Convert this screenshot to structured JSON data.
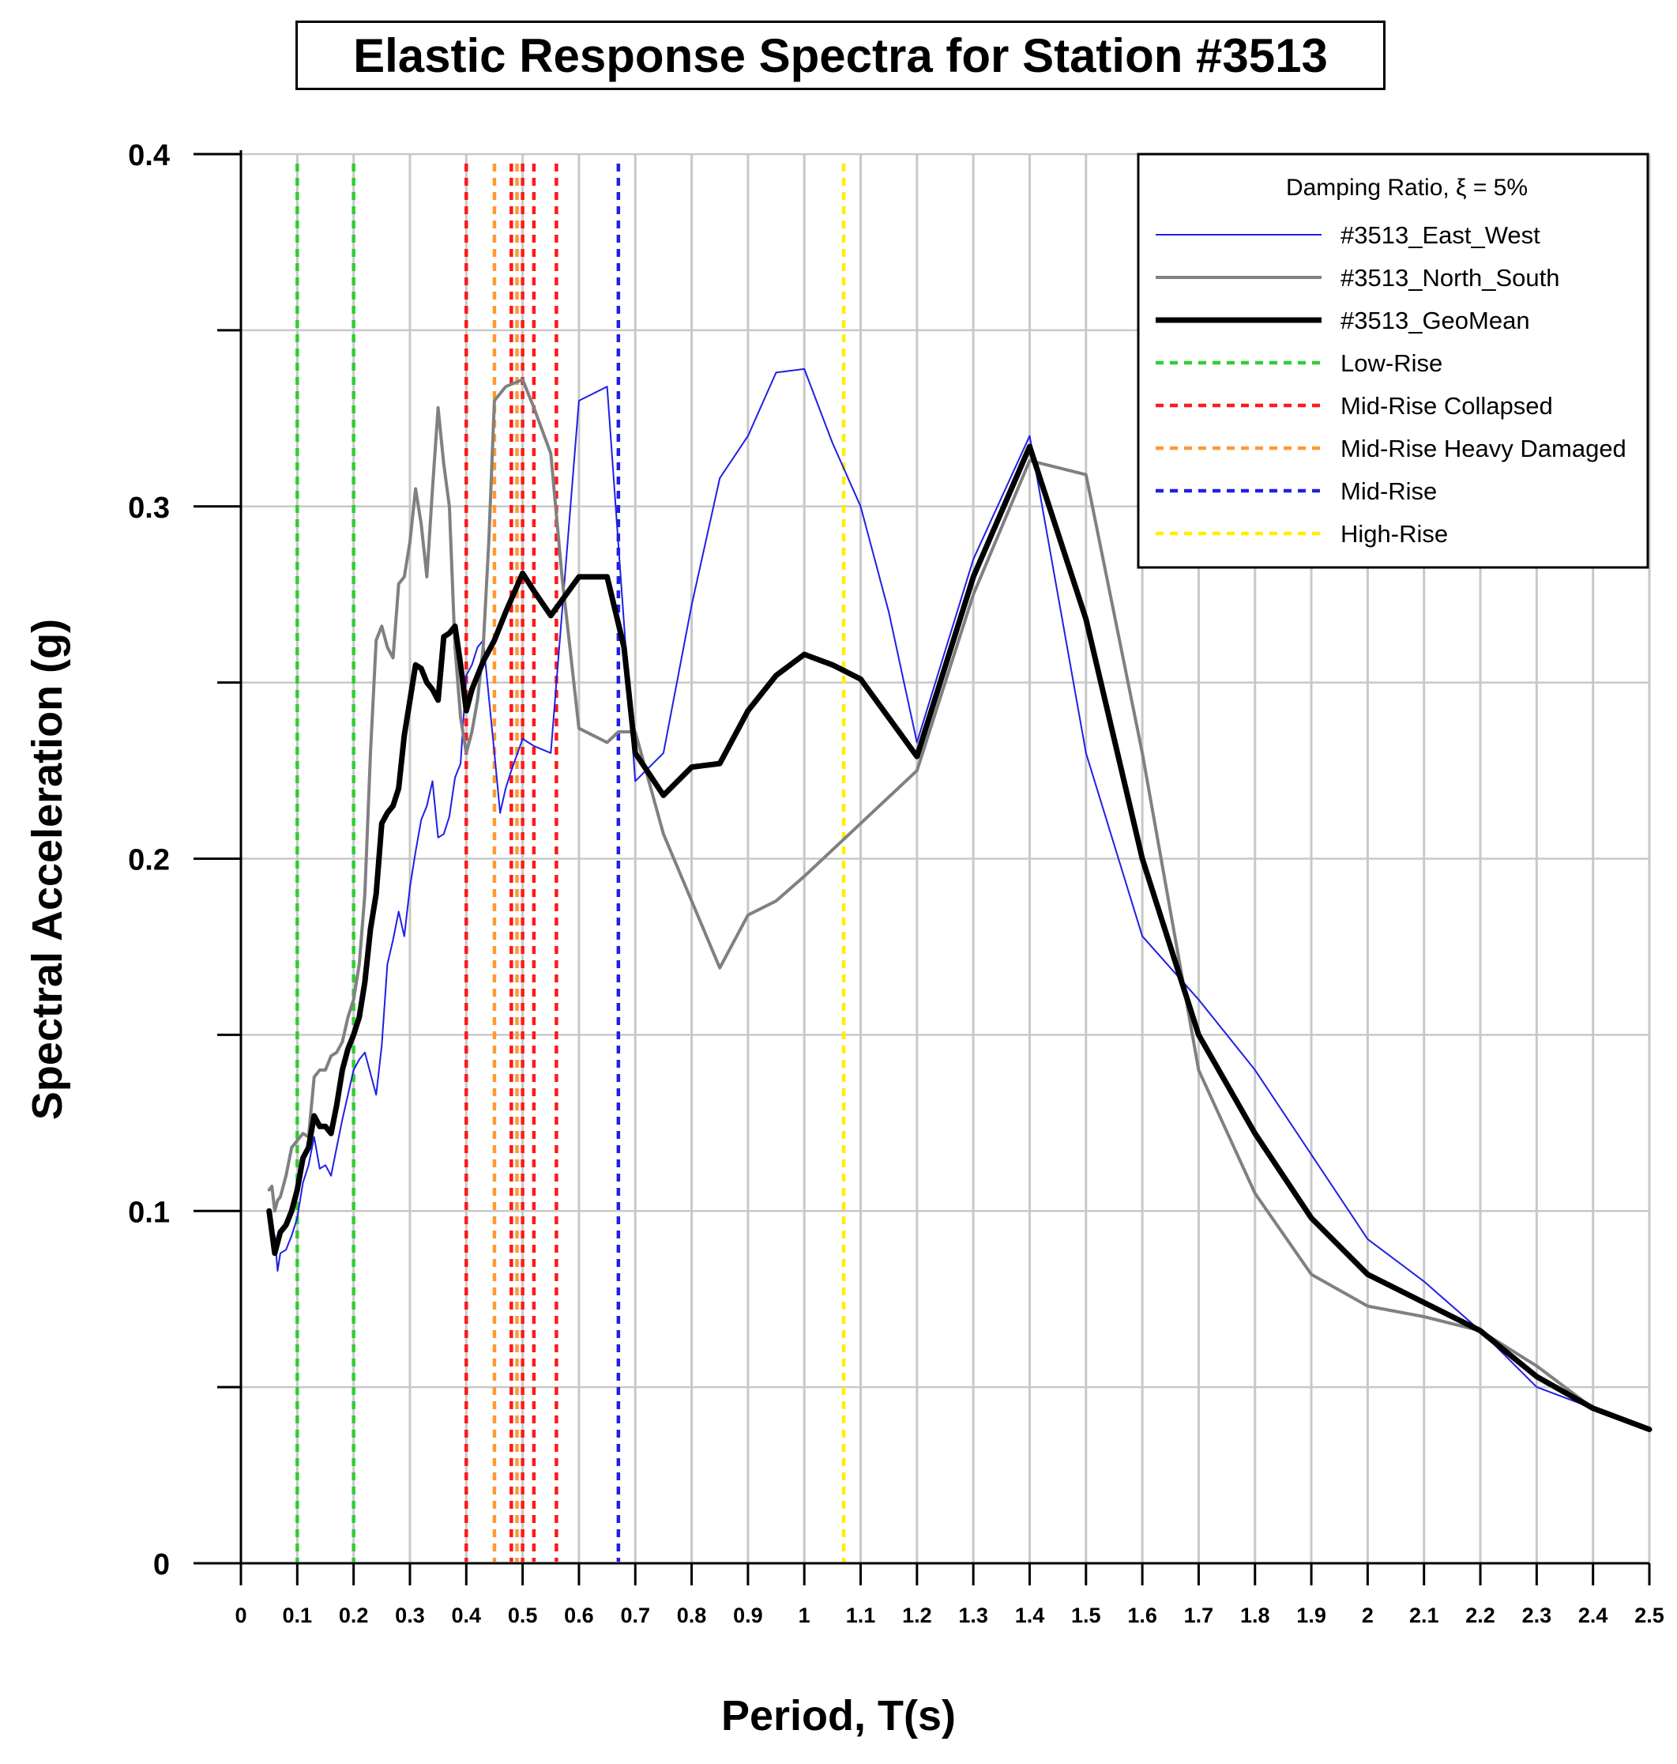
{
  "chart_data": {
    "type": "line",
    "title": "Elastic Response Spectra for Station #3513",
    "xlabel": "Period, T(s)",
    "ylabel": "Spectral Acceleration (g)",
    "xlim": [
      0,
      2.5
    ],
    "ylim": [
      0,
      0.4
    ],
    "x_ticks": [
      0,
      0.1,
      0.2,
      0.3,
      0.4,
      0.5,
      0.6,
      0.7,
      0.8,
      0.9,
      1,
      1.1,
      1.2,
      1.3,
      1.4,
      1.5,
      1.6,
      1.7,
      1.8,
      1.9,
      2,
      2.1,
      2.2,
      2.3,
      2.4,
      2.5
    ],
    "y_ticks": [
      0,
      0.1,
      0.2,
      0.3,
      0.4
    ],
    "grid": true,
    "legend_title": "Damping Ratio, ξ = 5%",
    "legend_position": "top-right",
    "series": [
      {
        "name": "#3513_East_West",
        "color": "#1f1fe6",
        "style": "thin",
        "points": [
          [
            0.06,
            0.093
          ],
          [
            0.065,
            0.083
          ],
          [
            0.07,
            0.088
          ],
          [
            0.08,
            0.089
          ],
          [
            0.09,
            0.093
          ],
          [
            0.1,
            0.098
          ],
          [
            0.11,
            0.108
          ],
          [
            0.12,
            0.113
          ],
          [
            0.13,
            0.121
          ],
          [
            0.14,
            0.112
          ],
          [
            0.15,
            0.113
          ],
          [
            0.16,
            0.11
          ],
          [
            0.17,
            0.118
          ],
          [
            0.18,
            0.126
          ],
          [
            0.19,
            0.133
          ],
          [
            0.2,
            0.14
          ],
          [
            0.21,
            0.143
          ],
          [
            0.22,
            0.145
          ],
          [
            0.23,
            0.139
          ],
          [
            0.24,
            0.133
          ],
          [
            0.25,
            0.147
          ],
          [
            0.26,
            0.17
          ],
          [
            0.27,
            0.177
          ],
          [
            0.28,
            0.185
          ],
          [
            0.29,
            0.178
          ],
          [
            0.3,
            0.192
          ],
          [
            0.31,
            0.202
          ],
          [
            0.32,
            0.211
          ],
          [
            0.33,
            0.215
          ],
          [
            0.34,
            0.222
          ],
          [
            0.35,
            0.206
          ],
          [
            0.36,
            0.207
          ],
          [
            0.37,
            0.212
          ],
          [
            0.38,
            0.223
          ],
          [
            0.39,
            0.227
          ],
          [
            0.4,
            0.252
          ],
          [
            0.41,
            0.255
          ],
          [
            0.42,
            0.26
          ],
          [
            0.43,
            0.262
          ],
          [
            0.45,
            0.23
          ],
          [
            0.46,
            0.213
          ],
          [
            0.47,
            0.22
          ],
          [
            0.48,
            0.225
          ],
          [
            0.5,
            0.234
          ],
          [
            0.52,
            0.232
          ],
          [
            0.55,
            0.23
          ],
          [
            0.6,
            0.33
          ],
          [
            0.65,
            0.334
          ],
          [
            0.7,
            0.222
          ],
          [
            0.75,
            0.23
          ],
          [
            0.8,
            0.272
          ],
          [
            0.85,
            0.308
          ],
          [
            0.9,
            0.32
          ],
          [
            0.95,
            0.338
          ],
          [
            1.0,
            0.339
          ],
          [
            1.05,
            0.318
          ],
          [
            1.1,
            0.3
          ],
          [
            1.15,
            0.27
          ],
          [
            1.2,
            0.233
          ],
          [
            1.3,
            0.285
          ],
          [
            1.4,
            0.32
          ],
          [
            1.5,
            0.23
          ],
          [
            1.6,
            0.178
          ],
          [
            1.7,
            0.16
          ],
          [
            1.8,
            0.14
          ],
          [
            1.9,
            0.116
          ],
          [
            2.0,
            0.092
          ],
          [
            2.1,
            0.08
          ],
          [
            2.2,
            0.066
          ],
          [
            2.3,
            0.05
          ],
          [
            2.4,
            0.044
          ],
          [
            2.5,
            0.038
          ]
        ]
      },
      {
        "name": "#3513_North_South",
        "color": "#808080",
        "style": "medium",
        "points": [
          [
            0.05,
            0.106
          ],
          [
            0.055,
            0.107
          ],
          [
            0.06,
            0.1
          ],
          [
            0.065,
            0.103
          ],
          [
            0.07,
            0.104
          ],
          [
            0.08,
            0.11
          ],
          [
            0.09,
            0.118
          ],
          [
            0.1,
            0.12
          ],
          [
            0.11,
            0.122
          ],
          [
            0.12,
            0.121
          ],
          [
            0.13,
            0.138
          ],
          [
            0.14,
            0.14
          ],
          [
            0.15,
            0.14
          ],
          [
            0.16,
            0.144
          ],
          [
            0.17,
            0.145
          ],
          [
            0.18,
            0.148
          ],
          [
            0.19,
            0.155
          ],
          [
            0.2,
            0.16
          ],
          [
            0.21,
            0.17
          ],
          [
            0.22,
            0.19
          ],
          [
            0.23,
            0.23
          ],
          [
            0.24,
            0.262
          ],
          [
            0.25,
            0.266
          ],
          [
            0.26,
            0.26
          ],
          [
            0.27,
            0.257
          ],
          [
            0.28,
            0.278
          ],
          [
            0.29,
            0.28
          ],
          [
            0.3,
            0.29
          ],
          [
            0.31,
            0.305
          ],
          [
            0.32,
            0.295
          ],
          [
            0.33,
            0.28
          ],
          [
            0.34,
            0.305
          ],
          [
            0.35,
            0.328
          ],
          [
            0.36,
            0.312
          ],
          [
            0.37,
            0.3
          ],
          [
            0.38,
            0.26
          ],
          [
            0.39,
            0.24
          ],
          [
            0.4,
            0.23
          ],
          [
            0.41,
            0.236
          ],
          [
            0.42,
            0.245
          ],
          [
            0.43,
            0.26
          ],
          [
            0.44,
            0.29
          ],
          [
            0.45,
            0.33
          ],
          [
            0.47,
            0.334
          ],
          [
            0.5,
            0.336
          ],
          [
            0.52,
            0.328
          ],
          [
            0.55,
            0.315
          ],
          [
            0.57,
            0.28
          ],
          [
            0.6,
            0.237
          ],
          [
            0.65,
            0.233
          ],
          [
            0.67,
            0.236
          ],
          [
            0.7,
            0.236
          ],
          [
            0.75,
            0.207
          ],
          [
            0.8,
            0.188
          ],
          [
            0.85,
            0.169
          ],
          [
            0.9,
            0.184
          ],
          [
            0.95,
            0.188
          ],
          [
            1.0,
            0.195
          ],
          [
            1.1,
            0.21
          ],
          [
            1.2,
            0.225
          ],
          [
            1.3,
            0.275
          ],
          [
            1.4,
            0.313
          ],
          [
            1.5,
            0.309
          ],
          [
            1.6,
            0.23
          ],
          [
            1.7,
            0.14
          ],
          [
            1.8,
            0.105
          ],
          [
            1.9,
            0.082
          ],
          [
            2.0,
            0.073
          ],
          [
            2.1,
            0.07
          ],
          [
            2.2,
            0.066
          ],
          [
            2.3,
            0.056
          ],
          [
            2.4,
            0.044
          ],
          [
            2.5,
            0.038
          ]
        ]
      },
      {
        "name": "#3513_GeoMean",
        "color": "#000000",
        "style": "thick",
        "points": [
          [
            0.05,
            0.1
          ],
          [
            0.06,
            0.088
          ],
          [
            0.07,
            0.094
          ],
          [
            0.08,
            0.096
          ],
          [
            0.09,
            0.1
          ],
          [
            0.1,
            0.106
          ],
          [
            0.11,
            0.115
          ],
          [
            0.12,
            0.118
          ],
          [
            0.13,
            0.127
          ],
          [
            0.14,
            0.124
          ],
          [
            0.15,
            0.124
          ],
          [
            0.16,
            0.122
          ],
          [
            0.17,
            0.13
          ],
          [
            0.18,
            0.14
          ],
          [
            0.19,
            0.146
          ],
          [
            0.2,
            0.15
          ],
          [
            0.21,
            0.155
          ],
          [
            0.22,
            0.165
          ],
          [
            0.23,
            0.18
          ],
          [
            0.24,
            0.19
          ],
          [
            0.25,
            0.21
          ],
          [
            0.26,
            0.213
          ],
          [
            0.27,
            0.215
          ],
          [
            0.28,
            0.22
          ],
          [
            0.29,
            0.235
          ],
          [
            0.3,
            0.245
          ],
          [
            0.31,
            0.255
          ],
          [
            0.32,
            0.254
          ],
          [
            0.33,
            0.25
          ],
          [
            0.34,
            0.248
          ],
          [
            0.35,
            0.245
          ],
          [
            0.36,
            0.263
          ],
          [
            0.37,
            0.264
          ],
          [
            0.38,
            0.266
          ],
          [
            0.39,
            0.255
          ],
          [
            0.4,
            0.242
          ],
          [
            0.41,
            0.248
          ],
          [
            0.42,
            0.252
          ],
          [
            0.43,
            0.256
          ],
          [
            0.45,
            0.262
          ],
          [
            0.47,
            0.27
          ],
          [
            0.5,
            0.281
          ],
          [
            0.52,
            0.276
          ],
          [
            0.55,
            0.269
          ],
          [
            0.6,
            0.28
          ],
          [
            0.65,
            0.28
          ],
          [
            0.68,
            0.26
          ],
          [
            0.7,
            0.23
          ],
          [
            0.75,
            0.218
          ],
          [
            0.8,
            0.226
          ],
          [
            0.85,
            0.227
          ],
          [
            0.9,
            0.242
          ],
          [
            0.95,
            0.252
          ],
          [
            1.0,
            0.258
          ],
          [
            1.05,
            0.255
          ],
          [
            1.1,
            0.251
          ],
          [
            1.2,
            0.229
          ],
          [
            1.3,
            0.28
          ],
          [
            1.4,
            0.317
          ],
          [
            1.5,
            0.268
          ],
          [
            1.6,
            0.2
          ],
          [
            1.7,
            0.15
          ],
          [
            1.8,
            0.122
          ],
          [
            1.9,
            0.098
          ],
          [
            2.0,
            0.082
          ],
          [
            2.1,
            0.074
          ],
          [
            2.2,
            0.066
          ],
          [
            2.3,
            0.053
          ],
          [
            2.4,
            0.044
          ],
          [
            2.5,
            0.038
          ]
        ]
      }
    ],
    "reference_lines": [
      {
        "name": "Low-Rise",
        "color": "#33cc33",
        "periods": [
          0.1,
          0.2
        ]
      },
      {
        "name": "Mid-Rise Collapsed",
        "color": "#ff1a1a",
        "periods": [
          0.4,
          0.48,
          0.5,
          0.52,
          0.56
        ]
      },
      {
        "name": "Mid-Rise Heavy Damaged",
        "color": "#ff9933",
        "periods": [
          0.45,
          0.49
        ]
      },
      {
        "name": "Mid-Rise",
        "color": "#1f1fe6",
        "periods": [
          0.67
        ]
      },
      {
        "name": "High-Rise",
        "color": "#ffee00",
        "periods": [
          1.07
        ]
      }
    ]
  }
}
